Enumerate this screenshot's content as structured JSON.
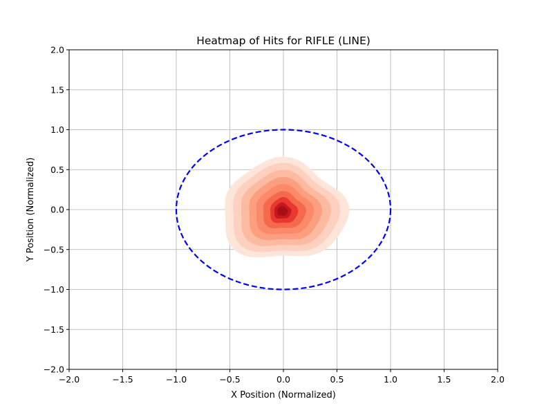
{
  "chart_data": {
    "type": "heatmap",
    "title": "Heatmap of Hits for RIFLE (LINE)",
    "xlabel": "X Position (Normalized)",
    "ylabel": "Y Position (Normalized)",
    "xlim": [
      -2.0,
      2.0
    ],
    "ylim": [
      -2.0,
      2.0
    ],
    "x_ticks": [
      -2.0,
      -1.5,
      -1.0,
      -0.5,
      0.0,
      0.5,
      1.0,
      1.5,
      2.0
    ],
    "y_ticks": [
      -2.0,
      -1.5,
      -1.0,
      -0.5,
      0.0,
      0.5,
      1.0,
      1.5,
      2.0
    ],
    "x_tick_labels": [
      "−2.0",
      "−1.5",
      "−1.0",
      "−0.5",
      "0.0",
      "0.5",
      "1.0",
      "1.5",
      "2.0"
    ],
    "y_tick_labels": [
      "−2.0",
      "−1.5",
      "−1.0",
      "−0.5",
      "0.0",
      "0.5",
      "1.0",
      "1.5",
      "2.0"
    ],
    "grid": true,
    "colormap": "Reds",
    "density_contours": [
      {
        "level": 1,
        "color": "#fee5d9",
        "cx": 0.0,
        "cy": -0.02,
        "rx": 0.58,
        "ry": 0.62
      },
      {
        "level": 2,
        "color": "#fdd0c0",
        "cx": 0.0,
        "cy": -0.02,
        "rx": 0.5,
        "ry": 0.55
      },
      {
        "level": 3,
        "color": "#fcbba1",
        "cx": 0.0,
        "cy": -0.02,
        "rx": 0.42,
        "ry": 0.47
      },
      {
        "level": 4,
        "color": "#fc9f81",
        "cx": 0.0,
        "cy": -0.02,
        "rx": 0.34,
        "ry": 0.39
      },
      {
        "level": 5,
        "color": "#fb8a6a",
        "cx": 0.0,
        "cy": -0.02,
        "rx": 0.27,
        "ry": 0.31
      },
      {
        "level": 6,
        "color": "#f56a4c",
        "cx": 0.0,
        "cy": -0.02,
        "rx": 0.2,
        "ry": 0.23
      },
      {
        "level": 7,
        "color": "#e8392f",
        "cx": 0.0,
        "cy": -0.02,
        "rx": 0.13,
        "ry": 0.16
      },
      {
        "level": 8,
        "color": "#c9181d",
        "cx": -0.01,
        "cy": -0.02,
        "rx": 0.08,
        "ry": 0.1
      },
      {
        "level": 9,
        "color": "#a50f15",
        "cx": -0.01,
        "cy": -0.02,
        "rx": 0.05,
        "ry": 0.06
      }
    ],
    "target_circle": {
      "cx": 0.0,
      "cy": 0.0,
      "r": 1.0,
      "color": "#0000ff",
      "style": "dashed"
    }
  }
}
